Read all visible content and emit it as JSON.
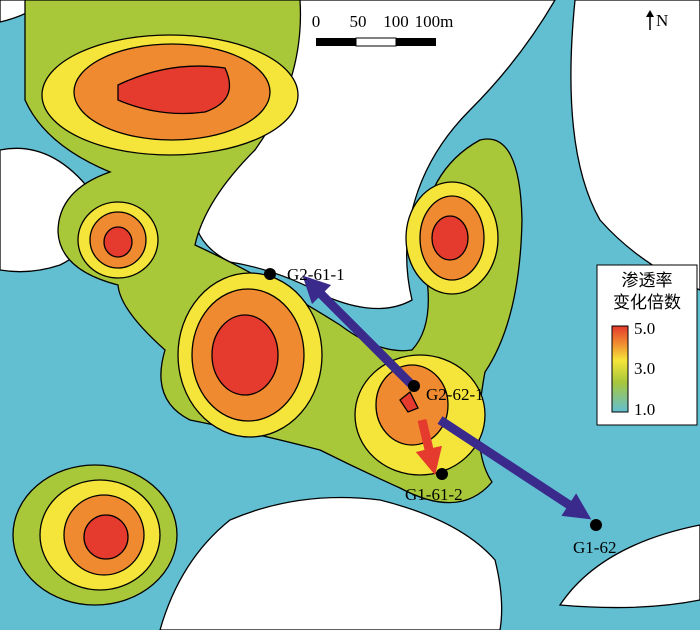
{
  "scale_bar": {
    "labels": [
      "0",
      "50",
      "100",
      "100m"
    ]
  },
  "north": "N",
  "legend": {
    "title_lines": [
      "渗透率",
      "变化倍数"
    ],
    "labels": [
      "5.0",
      "3.0",
      "1.0"
    ]
  },
  "wells": [
    {
      "label": "G2-61-1"
    },
    {
      "label": "G2-62-1"
    },
    {
      "label": "G1-61-2"
    },
    {
      "label": "G1-62"
    }
  ]
}
